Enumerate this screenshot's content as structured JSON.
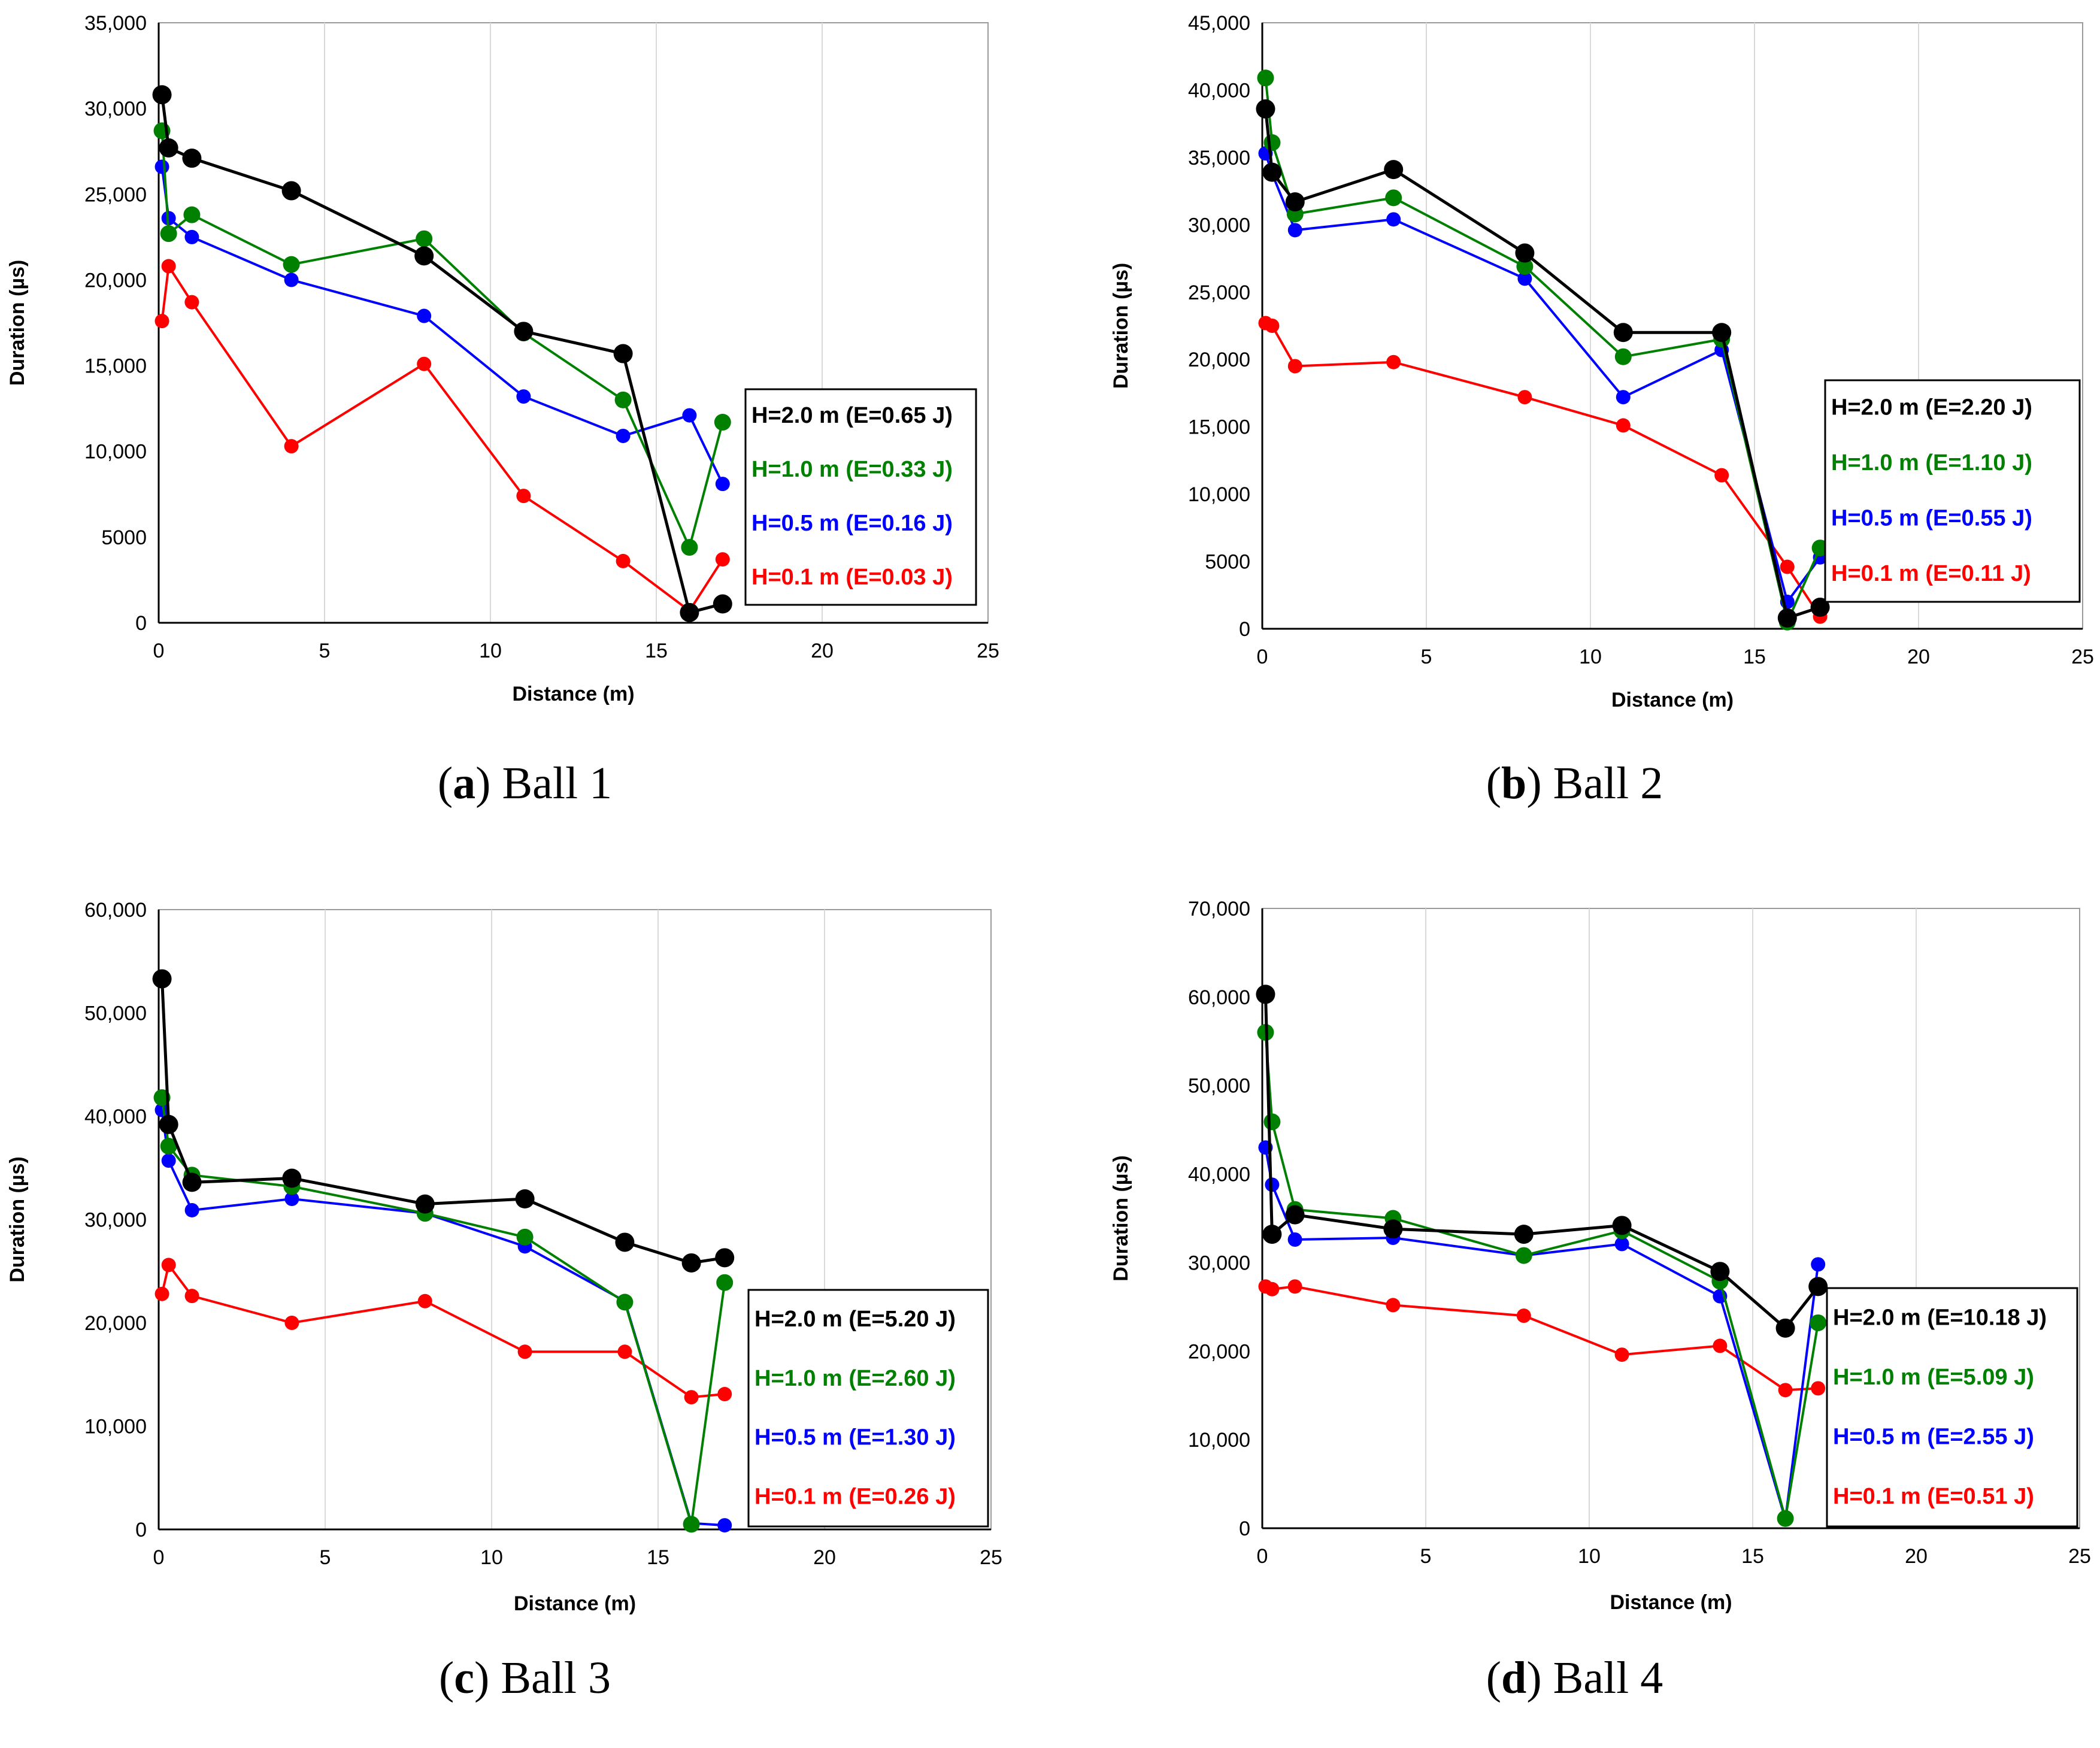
{
  "chart_data": [
    {
      "type": "line",
      "caption_letter": "a",
      "caption_text": "Ball 1",
      "xlabel": "Distance (m)",
      "ylabel": "Duration (µs)",
      "xlim": [
        0,
        25
      ],
      "ylim": [
        0,
        35000
      ],
      "xticks": [
        0,
        5,
        10,
        15,
        20,
        25
      ],
      "xtick_labels": [
        "0",
        "5",
        "10",
        "15",
        "20",
        "25"
      ],
      "yticks": [
        0,
        5000,
        10000,
        15000,
        20000,
        25000,
        30000,
        35000
      ],
      "ytick_labels": [
        "0",
        "5000",
        "10,000",
        "15,000",
        "20,000",
        "25,000",
        "30,000",
        "35,000"
      ],
      "grid": true,
      "legend_position": "right",
      "series": [
        {
          "name": "H=0.1 m (E=0.03 J)",
          "color": "#ff0000",
          "x": [
            0.1,
            0.3,
            1,
            4,
            8,
            11,
            14,
            16,
            17
          ],
          "y": [
            17600,
            20800,
            18700,
            10300,
            15100,
            7400,
            3600,
            700,
            3700
          ]
        },
        {
          "name": "H=0.5 m (E=0.16 J)",
          "color": "#0000ff",
          "x": [
            0.1,
            0.3,
            1,
            4,
            8,
            11,
            14,
            16,
            17
          ],
          "y": [
            26600,
            23600,
            22500,
            20000,
            17900,
            13200,
            10900,
            12100,
            8100
          ]
        },
        {
          "name": "H=1.0 m (E=0.33 J)",
          "color": "#008000",
          "x": [
            0.1,
            0.3,
            1,
            4,
            8,
            11,
            14,
            16,
            17
          ],
          "y": [
            28700,
            22700,
            23800,
            20900,
            22400,
            16900,
            13000,
            4400,
            11700
          ]
        },
        {
          "name": "H=2.0 m (E=0.65 J)",
          "color": "#000000",
          "x": [
            0.1,
            0.3,
            1,
            4,
            8,
            11,
            14,
            16,
            17
          ],
          "y": [
            30800,
            27700,
            27100,
            25200,
            21400,
            17000,
            15700,
            600,
            1100
          ]
        }
      ]
    },
    {
      "type": "line",
      "caption_letter": "b",
      "caption_text": "Ball 2",
      "xlabel": "Distance (m)",
      "ylabel": "Duration (µs)",
      "xlim": [
        0,
        25
      ],
      "ylim": [
        0,
        45000
      ],
      "xticks": [
        0,
        5,
        10,
        15,
        20,
        25
      ],
      "xtick_labels": [
        "0",
        "5",
        "10",
        "15",
        "20",
        "25"
      ],
      "yticks": [
        0,
        5000,
        10000,
        15000,
        20000,
        25000,
        30000,
        35000,
        40000,
        45000
      ],
      "ytick_labels": [
        "0",
        "5000",
        "10,000",
        "15,000",
        "20,000",
        "25,000",
        "30,000",
        "35,000",
        "40,000",
        "45,000"
      ],
      "grid": true,
      "legend_position": "right",
      "series": [
        {
          "name": "H=0.1 m (E=0.11 J)",
          "color": "#ff0000",
          "x": [
            0.1,
            0.3,
            1,
            4,
            8,
            11,
            14,
            16,
            17
          ],
          "y": [
            22700,
            22500,
            19500,
            19800,
            17200,
            15100,
            11400,
            4600,
            900
          ]
        },
        {
          "name": "H=0.5 m (E=0.55 J)",
          "color": "#0000ff",
          "x": [
            0.1,
            0.3,
            1,
            4,
            8,
            11,
            14,
            16,
            17
          ],
          "y": [
            35300,
            33800,
            29600,
            30400,
            26000,
            17200,
            20700,
            2000,
            5300
          ]
        },
        {
          "name": "H=1.0 m (E=1.10 J)",
          "color": "#008000",
          "x": [
            0.1,
            0.3,
            1,
            4,
            8,
            11,
            14,
            16,
            17
          ],
          "y": [
            40900,
            36100,
            30800,
            32000,
            26900,
            20200,
            21500,
            500,
            6000
          ]
        },
        {
          "name": "H=2.0 m (E=2.20 J)",
          "color": "#000000",
          "x": [
            0.1,
            0.3,
            1,
            4,
            8,
            11,
            14,
            16,
            17
          ],
          "y": [
            38600,
            33900,
            31700,
            34100,
            27900,
            22000,
            22000,
            800,
            1600
          ]
        }
      ]
    },
    {
      "type": "line",
      "caption_letter": "c",
      "caption_text": "Ball 3",
      "xlabel": "Distance (m)",
      "ylabel": "Duration (µs)",
      "xlim": [
        0,
        25
      ],
      "ylim": [
        0,
        60000
      ],
      "xticks": [
        0,
        5,
        10,
        15,
        20,
        25
      ],
      "xtick_labels": [
        "0",
        "5",
        "10",
        "15",
        "20",
        "25"
      ],
      "yticks": [
        0,
        10000,
        20000,
        30000,
        40000,
        50000,
        60000
      ],
      "ytick_labels": [
        "0",
        "10,000",
        "20,000",
        "30,000",
        "40,000",
        "50,000",
        "60,000"
      ],
      "grid": true,
      "legend_position": "right",
      "series": [
        {
          "name": "H=0.1 m (E=0.26 J)",
          "color": "#ff0000",
          "x": [
            0.1,
            0.3,
            1,
            4,
            8,
            11,
            14,
            16,
            17
          ],
          "y": [
            22800,
            25600,
            22600,
            20000,
            22100,
            17200,
            17200,
            12800,
            13100
          ]
        },
        {
          "name": "H=0.5 m (E=1.30 J)",
          "color": "#0000ff",
          "x": [
            0.1,
            0.3,
            1,
            4,
            8,
            11,
            14,
            16,
            17
          ],
          "y": [
            40600,
            35700,
            30900,
            32000,
            30600,
            27400,
            22100,
            600,
            400
          ]
        },
        {
          "name": "H=1.0 m (E=2.60 J)",
          "color": "#008000",
          "x": [
            0.1,
            0.3,
            1,
            4,
            8,
            11,
            14,
            16,
            17
          ],
          "y": [
            41800,
            37100,
            34300,
            33200,
            30600,
            28300,
            22000,
            500,
            23900
          ]
        },
        {
          "name": "H=2.0 m (E=5.20 J)",
          "color": "#000000",
          "x": [
            0.1,
            0.3,
            1,
            4,
            8,
            11,
            14,
            16,
            17
          ],
          "y": [
            53300,
            39200,
            33600,
            34000,
            31500,
            32000,
            27800,
            25800,
            26300
          ]
        }
      ]
    },
    {
      "type": "line",
      "caption_letter": "d",
      "caption_text": "Ball 4",
      "xlabel": "Distance (m)",
      "ylabel": "Duration (µs)",
      "xlim": [
        0,
        25
      ],
      "ylim": [
        0,
        70000
      ],
      "xticks": [
        0,
        5,
        10,
        15,
        20,
        25
      ],
      "xtick_labels": [
        "0",
        "5",
        "10",
        "15",
        "20",
        "25"
      ],
      "yticks": [
        0,
        10000,
        20000,
        30000,
        40000,
        50000,
        60000,
        70000
      ],
      "ytick_labels": [
        "0",
        "10,000",
        "20,000",
        "30,000",
        "40,000",
        "50,000",
        "60,000",
        "70,000"
      ],
      "grid": true,
      "legend_position": "right",
      "series": [
        {
          "name": "H=0.1 m (E=0.51 J)",
          "color": "#ff0000",
          "x": [
            0.1,
            0.3,
            1,
            4,
            8,
            11,
            14,
            16,
            17
          ],
          "y": [
            27300,
            27000,
            27300,
            25200,
            24000,
            19600,
            20600,
            15600,
            15800
          ]
        },
        {
          "name": "H=0.5 m (E=2.55 J)",
          "color": "#0000ff",
          "x": [
            0.1,
            0.3,
            1,
            4,
            8,
            11,
            14,
            16,
            17
          ],
          "y": [
            43000,
            38800,
            32600,
            32800,
            30800,
            32100,
            26200,
            1000,
            29800
          ]
        },
        {
          "name": "H=1.0 m (E=5.09 J)",
          "color": "#008000",
          "x": [
            0.1,
            0.3,
            1,
            4,
            8,
            11,
            14,
            16,
            17
          ],
          "y": [
            56000,
            45900,
            36000,
            35000,
            30800,
            33600,
            27900,
            1100,
            23200
          ]
        },
        {
          "name": "H=2.0 m (E=10.18 J)",
          "color": "#000000",
          "x": [
            0.1,
            0.3,
            1,
            4,
            8,
            11,
            14,
            16,
            17
          ],
          "y": [
            60300,
            33200,
            35400,
            33800,
            33200,
            34200,
            29000,
            22600,
            27300
          ]
        }
      ]
    }
  ]
}
